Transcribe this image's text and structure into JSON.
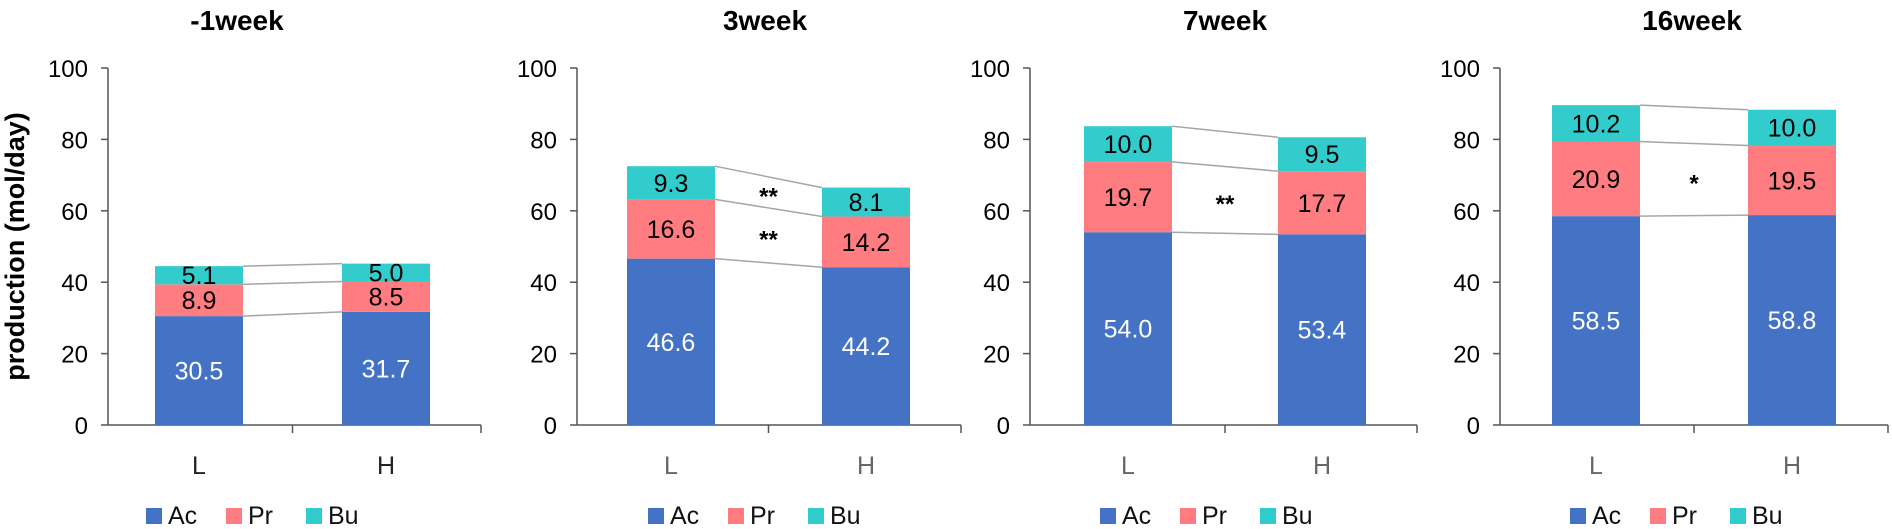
{
  "chart_data": [
    {
      "type": "bar",
      "stacked": true,
      "title": "-1week",
      "ylabel": "production (mol/day)",
      "ylim": [
        0,
        100
      ],
      "yticks": [
        0,
        20,
        40,
        60,
        80,
        100
      ],
      "categories": [
        "L",
        "H"
      ],
      "series": [
        {
          "name": "Ac",
          "color": "#4472C4",
          "values": [
            30.5,
            31.7
          ]
        },
        {
          "name": "Pr",
          "color": "#FF7C80",
          "values": [
            8.9,
            8.5
          ]
        },
        {
          "name": "Bu",
          "color": "#33CCCC",
          "values": [
            5.1,
            5.0
          ]
        }
      ],
      "annotations": [],
      "legend": "bottom"
    },
    {
      "type": "bar",
      "stacked": true,
      "title": "3week",
      "ylim": [
        0,
        100
      ],
      "yticks": [
        0,
        20,
        40,
        60,
        80,
        100
      ],
      "categories": [
        "L",
        "H"
      ],
      "series": [
        {
          "name": "Ac",
          "color": "#4472C4",
          "values": [
            46.6,
            44.2
          ]
        },
        {
          "name": "Pr",
          "color": "#FF7C80",
          "values": [
            16.6,
            14.2
          ]
        },
        {
          "name": "Bu",
          "color": "#33CCCC",
          "values": [
            9.3,
            8.1
          ]
        }
      ],
      "annotations": [
        {
          "text": "**",
          "series": "Bu"
        },
        {
          "text": "**",
          "series": "Pr"
        }
      ],
      "legend": "bottom"
    },
    {
      "type": "bar",
      "stacked": true,
      "title": "7week",
      "ylim": [
        0,
        100
      ],
      "yticks": [
        0,
        20,
        40,
        60,
        80,
        100
      ],
      "categories": [
        "L",
        "H"
      ],
      "series": [
        {
          "name": "Ac",
          "color": "#4472C4",
          "values": [
            54.0,
            53.4
          ]
        },
        {
          "name": "Pr",
          "color": "#FF7C80",
          "values": [
            19.7,
            17.7
          ]
        },
        {
          "name": "Bu",
          "color": "#33CCCC",
          "values": [
            10.0,
            9.5
          ]
        }
      ],
      "annotations": [
        {
          "text": "**",
          "series": "Pr"
        }
      ],
      "legend": "bottom"
    },
    {
      "type": "bar",
      "stacked": true,
      "title": "16week",
      "ylim": [
        0,
        100
      ],
      "yticks": [
        0,
        20,
        40,
        60,
        80,
        100
      ],
      "categories": [
        "L",
        "H"
      ],
      "series": [
        {
          "name": "Ac",
          "color": "#4472C4",
          "values": [
            58.5,
            58.8
          ]
        },
        {
          "name": "Pr",
          "color": "#FF7C80",
          "values": [
            20.9,
            19.5
          ]
        },
        {
          "name": "Bu",
          "color": "#33CCCC",
          "values": [
            10.2,
            10.0
          ]
        }
      ],
      "annotations": [
        {
          "text": "*",
          "series": "Pr"
        }
      ],
      "legend": "bottom"
    }
  ]
}
